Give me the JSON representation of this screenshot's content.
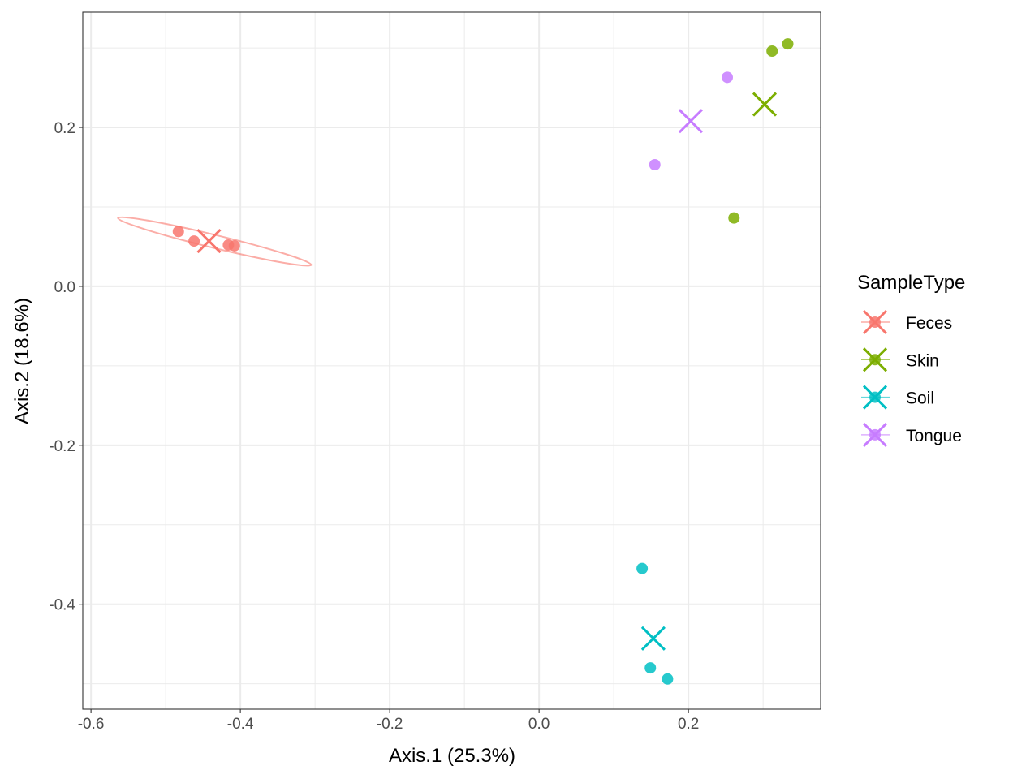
{
  "chart_data": {
    "type": "scatter",
    "title": "",
    "xlabel": "Axis.1 (25.3%)",
    "ylabel": "Axis.2 (18.6%)",
    "xlim": [
      -0.611,
      0.377
    ],
    "ylim": [
      -0.532,
      0.345
    ],
    "xticks": [
      -0.6,
      -0.4,
      -0.2,
      0.0,
      0.2
    ],
    "xtick_labels": [
      "-0.6",
      "-0.4",
      "-0.2",
      "0.0",
      "0.2"
    ],
    "yticks": [
      0.2,
      0.0,
      -0.2,
      -0.4
    ],
    "ytick_labels": [
      "0.2",
      "0.0",
      "-0.2",
      "-0.4"
    ],
    "grid": true,
    "legend": {
      "title": "SampleType",
      "placement": "right"
    },
    "series": [
      {
        "name": "Feces",
        "color": "#F8766D",
        "points": [
          [
            -0.483,
            0.069
          ],
          [
            -0.462,
            0.057
          ],
          [
            -0.416,
            0.052
          ],
          [
            -0.408,
            0.051
          ]
        ],
        "centroid": [
          -0.442,
          0.057
        ],
        "ellipse": {
          "end_a": [
            -0.564,
            0.086
          ],
          "end_b": [
            -0.305,
            0.027
          ]
        }
      },
      {
        "name": "Skin",
        "color": "#7CAE00",
        "points": [
          [
            0.312,
            0.296
          ],
          [
            0.333,
            0.305
          ],
          [
            0.261,
            0.086
          ]
        ],
        "centroid": [
          0.302,
          0.229
        ]
      },
      {
        "name": "Soil",
        "color": "#00BFC4",
        "points": [
          [
            0.138,
            -0.355
          ],
          [
            0.149,
            -0.48
          ],
          [
            0.172,
            -0.494
          ]
        ],
        "centroid": [
          0.153,
          -0.443
        ]
      },
      {
        "name": "Tongue",
        "color": "#C77CFF",
        "points": [
          [
            0.252,
            0.263
          ],
          [
            0.155,
            0.153
          ]
        ],
        "centroid": [
          0.203,
          0.208
        ]
      }
    ]
  }
}
